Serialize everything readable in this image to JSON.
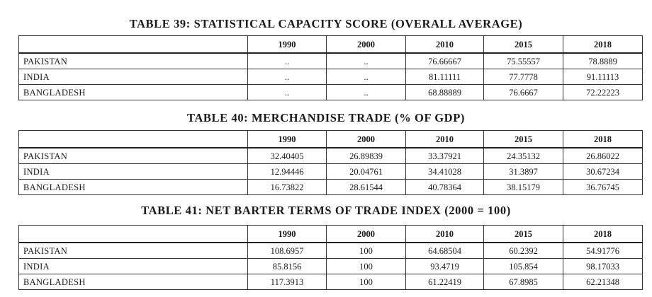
{
  "tables": [
    {
      "title": "TABLE 39: STATISTICAL CAPACITY SCORE (OVERALL AVERAGE)",
      "columns": [
        "",
        "1990",
        "2000",
        "2010",
        "2015",
        "2018"
      ],
      "rows": [
        {
          "country": "PAKISTAN",
          "values": [
            "..",
            "..",
            "76.66667",
            "75.55557",
            "78.8889"
          ]
        },
        {
          "country": "INDIA",
          "values": [
            "..",
            "..",
            "81.11111",
            "77.7778",
            "91.11113"
          ]
        },
        {
          "country": "BANGLADESH",
          "values": [
            "..",
            "..",
            "68.88889",
            "76.6667",
            "72.22223"
          ]
        }
      ]
    },
    {
      "title": "TABLE 40: MERCHANDISE TRADE (% OF GDP)",
      "columns": [
        "",
        "1990",
        "2000",
        "2010",
        "2015",
        "2018"
      ],
      "rows": [
        {
          "country": "PAKISTAN",
          "values": [
            "32.40405",
            "26.89839",
            "33.37921",
            "24.35132",
            "26.86022"
          ]
        },
        {
          "country": "INDIA",
          "values": [
            "12.94446",
            "20.04761",
            "34.41028",
            "31.3897",
            "30.67234"
          ]
        },
        {
          "country": "BANGLADESH",
          "values": [
            "16.73822",
            "28.61544",
            "40.78364",
            "38.15179",
            "36.76745"
          ]
        }
      ]
    },
    {
      "title": "TABLE 41: NET BARTER TERMS OF TRADE INDEX (2000 = 100)",
      "columns": [
        "",
        "1990",
        "2000",
        "2010",
        "2015",
        "2018"
      ],
      "rows": [
        {
          "country": "PAKISTAN",
          "values": [
            "108.6957",
            "100",
            "64.68504",
            "60.2392",
            "54.91776"
          ]
        },
        {
          "country": "INDIA",
          "values": [
            "85.8156",
            "100",
            "93.4719",
            "105.854",
            "98.17033"
          ]
        },
        {
          "country": "BANGLADESH",
          "values": [
            "117.3913",
            "100",
            "61.22419",
            "67.8985",
            "62.21348"
          ]
        }
      ]
    }
  ]
}
